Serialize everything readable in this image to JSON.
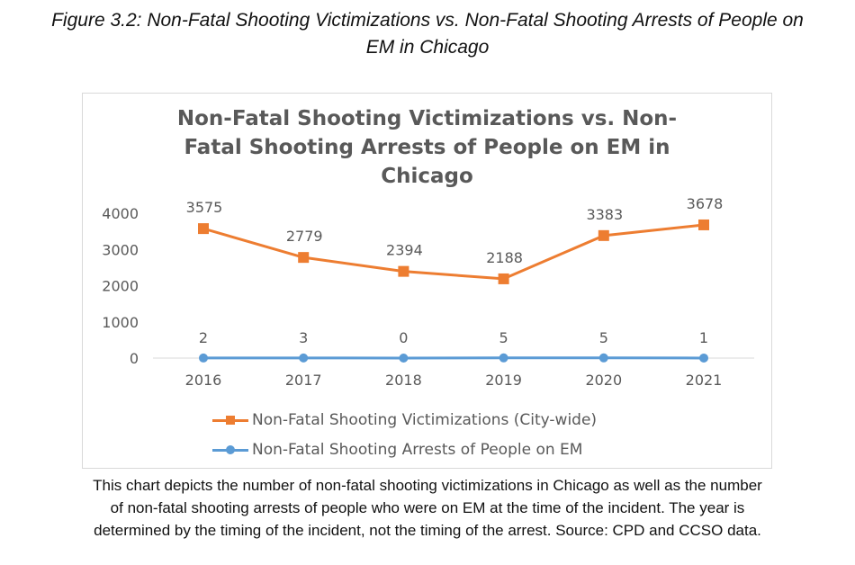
{
  "figure": {
    "caption_title_line1": "Figure 3.2: Non-Fatal Shooting Victimizations vs. Non-Fatal Shooting Arrests of People on",
    "caption_title_line2": "EM in Chicago",
    "note_line1": "This chart depicts the number of non-fatal shooting victimizations in Chicago as well as the number",
    "note_line2": "of non-fatal shooting arrests of people who were on EM at the time of the incident. The year is",
    "note_line3": "determined by the timing of the incident, not the timing of the arrest. Source: CPD and CCSO data."
  },
  "chart_data": {
    "type": "line",
    "title_lines": [
      "Non-Fatal Shooting Victimizations vs. Non-",
      "Fatal Shooting Arrests of People on EM in",
      "Chicago"
    ],
    "title": "Non-Fatal Shooting Victimizations vs. Non-Fatal Shooting Arrests of People on EM in Chicago",
    "xlabel": "",
    "ylabel": "",
    "categories": [
      "2016",
      "2017",
      "2018",
      "2019",
      "2020",
      "2021"
    ],
    "y_ticks": [
      0,
      1000,
      2000,
      3000,
      4000
    ],
    "ylim": [
      0,
      4000
    ],
    "grid": false,
    "legend_position": "bottom",
    "series": [
      {
        "name": "Non-Fatal Shooting Victimizations (City-wide)",
        "values": [
          3575,
          2779,
          2394,
          2188,
          3383,
          3678
        ],
        "color": "#ED7D31",
        "marker": "square",
        "data_labels": true
      },
      {
        "name": "Non-Fatal Shooting Arrests of People on EM",
        "values": [
          2,
          3,
          0,
          5,
          5,
          1
        ],
        "color": "#5B9BD5",
        "marker": "circle",
        "data_labels": true
      }
    ]
  }
}
